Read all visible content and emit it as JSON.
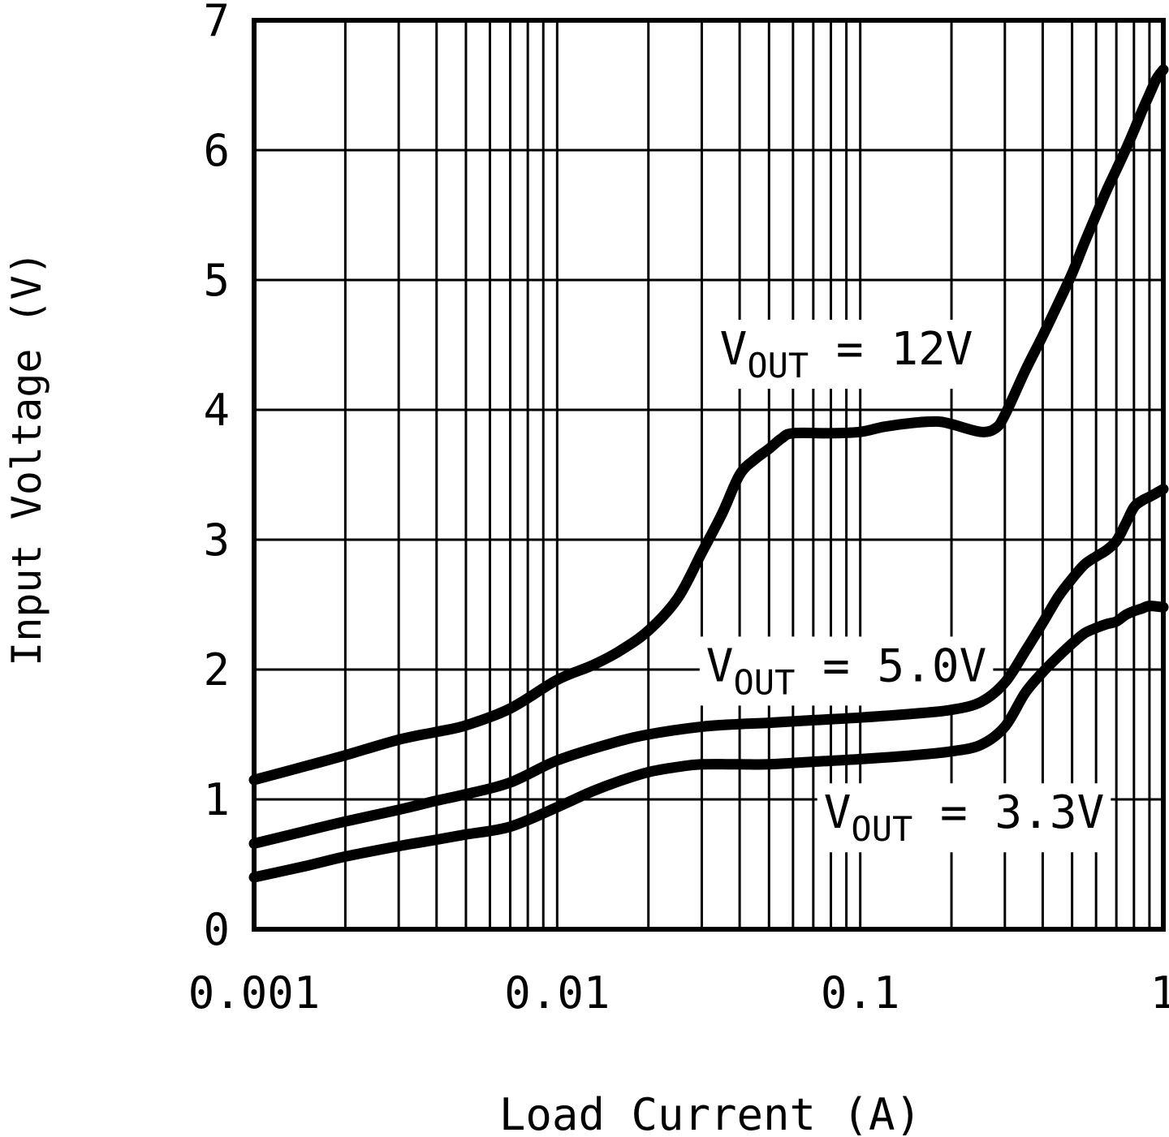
{
  "colors": {
    "foreground": "#000000",
    "background": "#ffffff"
  },
  "chart_data": {
    "type": "line",
    "title": "",
    "xlabel": "Load Current (A)",
    "ylabel": "Input Voltage (V)",
    "x_scale": "log",
    "xlim": [
      0.001,
      1
    ],
    "ylim": [
      0,
      7
    ],
    "grid": "on",
    "x_minor_gridlines": true,
    "x_tick_values": [
      0.001,
      0.01,
      0.1,
      1
    ],
    "x_tick_labels": [
      "0.001",
      "0.01",
      "0.1",
      "1"
    ],
    "y_tick_values": [
      0,
      1,
      2,
      3,
      4,
      5,
      6,
      7
    ],
    "y_tick_labels": [
      "0",
      "1",
      "2",
      "3",
      "4",
      "5",
      "6",
      "7"
    ],
    "legend_position": "inline-labels",
    "series": [
      {
        "name": "VOUT = 12V",
        "label": {
          "pre": "V",
          "sub": "OUT",
          "post": " = 12V",
          "x": 0.09,
          "y": 4.35
        },
        "points": [
          [
            0.001,
            1.15
          ],
          [
            0.0015,
            1.26
          ],
          [
            0.002,
            1.34
          ],
          [
            0.003,
            1.46
          ],
          [
            0.004,
            1.52
          ],
          [
            0.005,
            1.57
          ],
          [
            0.007,
            1.7
          ],
          [
            0.01,
            1.92
          ],
          [
            0.013,
            2.03
          ],
          [
            0.016,
            2.14
          ],
          [
            0.02,
            2.3
          ],
          [
            0.025,
            2.55
          ],
          [
            0.03,
            2.9
          ],
          [
            0.035,
            3.2
          ],
          [
            0.04,
            3.5
          ],
          [
            0.045,
            3.62
          ],
          [
            0.05,
            3.7
          ],
          [
            0.055,
            3.78
          ],
          [
            0.06,
            3.82
          ],
          [
            0.08,
            3.82
          ],
          [
            0.1,
            3.83
          ],
          [
            0.12,
            3.87
          ],
          [
            0.15,
            3.9
          ],
          [
            0.18,
            3.91
          ],
          [
            0.2,
            3.89
          ],
          [
            0.25,
            3.83
          ],
          [
            0.28,
            3.86
          ],
          [
            0.3,
            3.96
          ],
          [
            0.35,
            4.3
          ],
          [
            0.4,
            4.57
          ],
          [
            0.45,
            4.82
          ],
          [
            0.5,
            5.05
          ],
          [
            0.55,
            5.29
          ],
          [
            0.6,
            5.5
          ],
          [
            0.65,
            5.69
          ],
          [
            0.7,
            5.85
          ],
          [
            0.75,
            6.0
          ],
          [
            0.8,
            6.15
          ],
          [
            0.85,
            6.3
          ],
          [
            0.9,
            6.43
          ],
          [
            0.95,
            6.55
          ],
          [
            1.0,
            6.62
          ]
        ]
      },
      {
        "name": "VOUT = 5.0V",
        "label": {
          "pre": "V",
          "sub": "OUT",
          "post": " = 5.0V",
          "x": 0.09,
          "y": 1.91
        },
        "points": [
          [
            0.001,
            0.66
          ],
          [
            0.0015,
            0.76
          ],
          [
            0.002,
            0.83
          ],
          [
            0.003,
            0.92
          ],
          [
            0.004,
            0.99
          ],
          [
            0.005,
            1.04
          ],
          [
            0.007,
            1.13
          ],
          [
            0.01,
            1.3
          ],
          [
            0.015,
            1.43
          ],
          [
            0.02,
            1.5
          ],
          [
            0.03,
            1.56
          ],
          [
            0.04,
            1.58
          ],
          [
            0.05,
            1.59
          ],
          [
            0.07,
            1.61
          ],
          [
            0.1,
            1.63
          ],
          [
            0.15,
            1.66
          ],
          [
            0.2,
            1.69
          ],
          [
            0.25,
            1.75
          ],
          [
            0.3,
            1.9
          ],
          [
            0.35,
            2.14
          ],
          [
            0.4,
            2.36
          ],
          [
            0.45,
            2.56
          ],
          [
            0.5,
            2.7
          ],
          [
            0.55,
            2.81
          ],
          [
            0.6,
            2.87
          ],
          [
            0.65,
            2.92
          ],
          [
            0.7,
            2.99
          ],
          [
            0.75,
            3.12
          ],
          [
            0.8,
            3.25
          ],
          [
            0.85,
            3.3
          ],
          [
            0.9,
            3.33
          ],
          [
            0.95,
            3.36
          ],
          [
            1.0,
            3.39
          ]
        ]
      },
      {
        "name": "VOUT = 3.3V",
        "label": {
          "pre": "V",
          "sub": "OUT",
          "post": " = 3.3V",
          "x": 0.22,
          "y": 0.78
        },
        "points": [
          [
            0.001,
            0.4
          ],
          [
            0.0015,
            0.49
          ],
          [
            0.002,
            0.56
          ],
          [
            0.003,
            0.64
          ],
          [
            0.004,
            0.69
          ],
          [
            0.005,
            0.73
          ],
          [
            0.007,
            0.79
          ],
          [
            0.01,
            0.94
          ],
          [
            0.013,
            1.06
          ],
          [
            0.016,
            1.14
          ],
          [
            0.02,
            1.21
          ],
          [
            0.025,
            1.25
          ],
          [
            0.03,
            1.27
          ],
          [
            0.04,
            1.27
          ],
          [
            0.05,
            1.27
          ],
          [
            0.07,
            1.29
          ],
          [
            0.1,
            1.31
          ],
          [
            0.15,
            1.34
          ],
          [
            0.2,
            1.37
          ],
          [
            0.25,
            1.42
          ],
          [
            0.3,
            1.56
          ],
          [
            0.35,
            1.82
          ],
          [
            0.4,
            1.98
          ],
          [
            0.45,
            2.1
          ],
          [
            0.5,
            2.2
          ],
          [
            0.55,
            2.28
          ],
          [
            0.6,
            2.32
          ],
          [
            0.65,
            2.35
          ],
          [
            0.7,
            2.37
          ],
          [
            0.75,
            2.42
          ],
          [
            0.8,
            2.45
          ],
          [
            0.85,
            2.47
          ],
          [
            0.9,
            2.49
          ],
          [
            1.0,
            2.48
          ]
        ]
      }
    ]
  }
}
